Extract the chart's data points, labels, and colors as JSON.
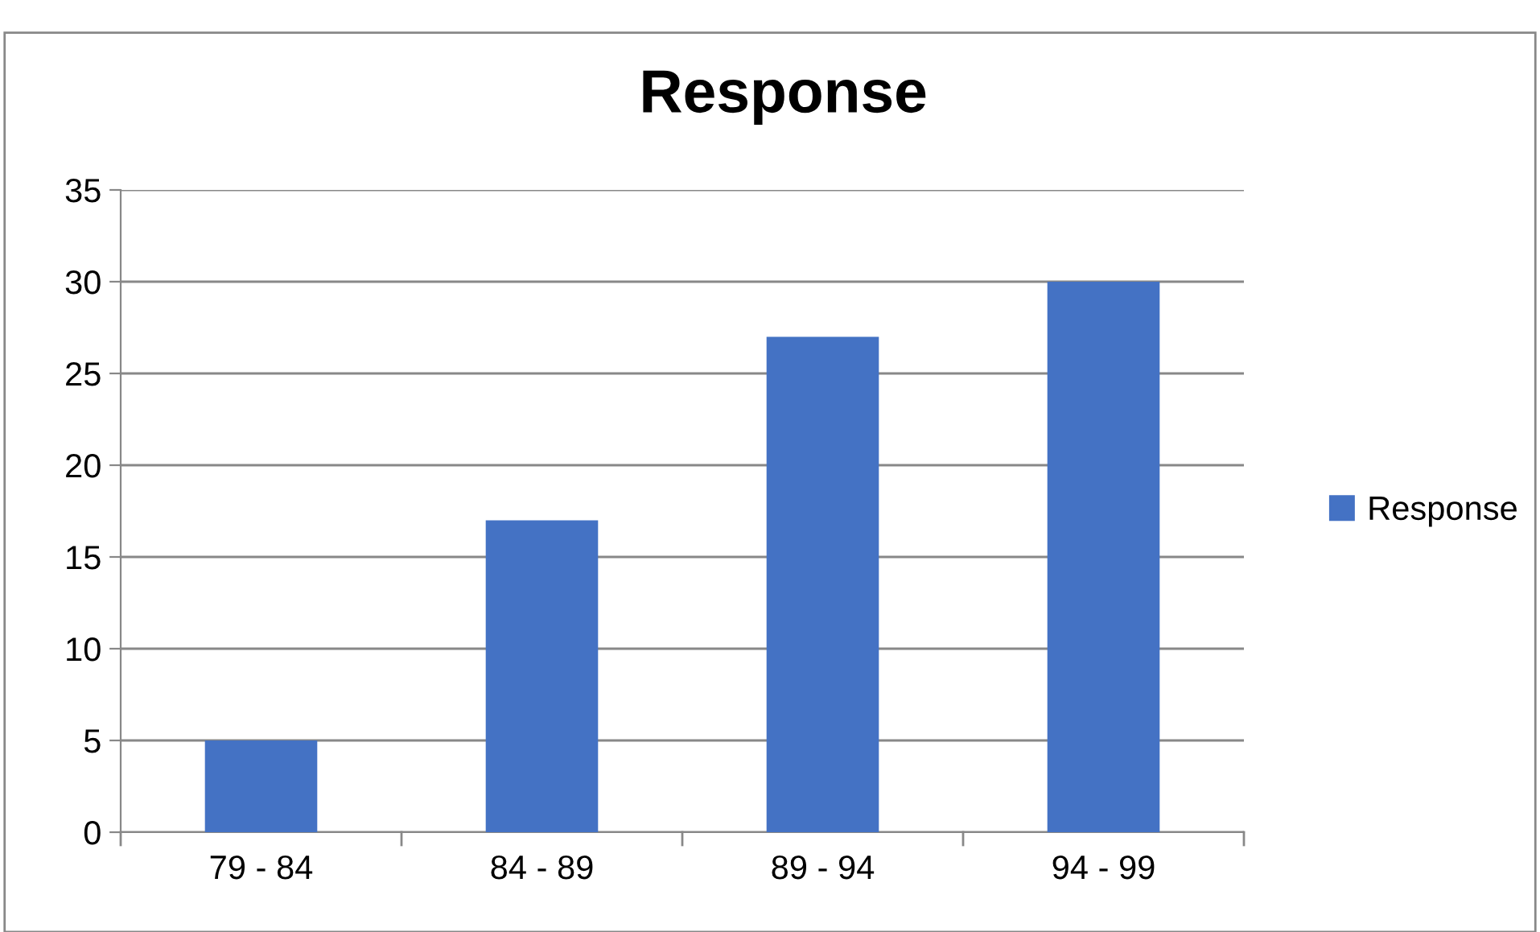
{
  "chart_data": {
    "type": "bar",
    "title": "Response",
    "categories": [
      "79 - 84",
      "84 - 89",
      "89 - 94",
      "94 - 99"
    ],
    "series": [
      {
        "name": "Response",
        "color": "#4472c4",
        "values": [
          5,
          17,
          27,
          30
        ]
      }
    ],
    "ylim": [
      0,
      35
    ],
    "yticks": [
      0,
      5,
      10,
      15,
      20,
      25,
      30,
      35
    ],
    "grid": "y",
    "legend": "right"
  }
}
